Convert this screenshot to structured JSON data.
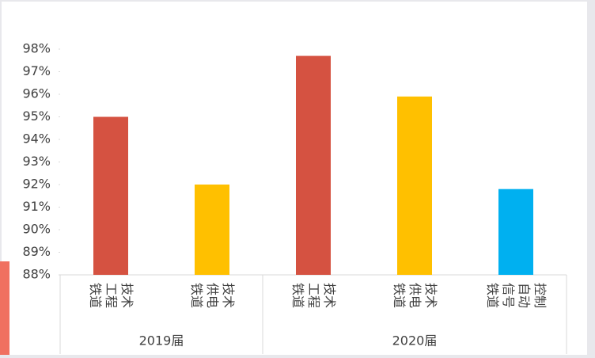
{
  "chart_data": {
    "type": "bar",
    "groups": [
      {
        "label": "2019届",
        "categories": [
          "铁道工程技术",
          "铁道供电技术"
        ],
        "values": [
          95.0,
          92.0
        ],
        "colors": [
          "#d55241",
          "#ffc000"
        ]
      },
      {
        "label": "2020届",
        "categories": [
          "铁道工程技术",
          "铁道供电技术",
          "铁道信号自动控制"
        ],
        "values": [
          97.7,
          95.9,
          91.8
        ],
        "colors": [
          "#d55241",
          "#ffc000",
          "#00b0f0"
        ]
      }
    ],
    "ylim": [
      88,
      98
    ],
    "yticks": [
      {
        "value": 88,
        "label": "88%"
      },
      {
        "value": 89,
        "label": "89%"
      },
      {
        "value": 90,
        "label": "90%"
      },
      {
        "value": 91,
        "label": "91%"
      },
      {
        "value": 92,
        "label": "92%"
      },
      {
        "value": 93,
        "label": "93%"
      },
      {
        "value": 94,
        "label": "94%"
      },
      {
        "value": 95,
        "label": "95%"
      },
      {
        "value": 96,
        "label": "96%"
      },
      {
        "value": 97,
        "label": "97%"
      },
      {
        "value": 98,
        "label": "98%"
      }
    ],
    "grid": false
  }
}
